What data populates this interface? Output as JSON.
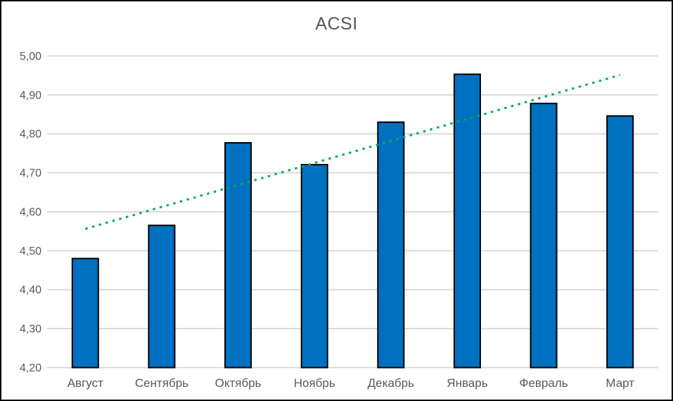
{
  "chart_data": {
    "type": "bar",
    "title": "ACSI",
    "categories": [
      "Август",
      "Сентябрь",
      "Октябрь",
      "Ноябрь",
      "Декабрь",
      "Январь",
      "Февраль",
      "Март"
    ],
    "values": [
      4.48,
      4.565,
      4.777,
      4.721,
      4.83,
      4.953,
      4.878,
      4.846
    ],
    "ylim": [
      4.2,
      5.0
    ],
    "y_tick_step": 0.1,
    "y_tick_labels": [
      "4,20",
      "4,30",
      "4,40",
      "4,50",
      "4,60",
      "4,70",
      "4,80",
      "4,90",
      "5,00"
    ],
    "xlabel": "",
    "ylabel": "",
    "grid": true,
    "legend": false,
    "trendline": {
      "type": "linear",
      "style": "dotted",
      "start_value": 4.556,
      "end_value": 4.951,
      "color": "#00B050"
    },
    "colors": {
      "bar_fill": "#0070C0",
      "bar_border": "#000000",
      "gridline": "#D9D9D9",
      "axis_text": "#595959",
      "title_text": "#595959",
      "chart_border": "#000000",
      "background": "#FFFFFF"
    }
  }
}
